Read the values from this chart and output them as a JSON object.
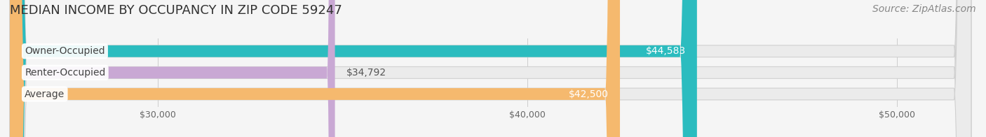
{
  "title": "MEDIAN INCOME BY OCCUPANCY IN ZIP CODE 59247",
  "source": "Source: ZipAtlas.com",
  "categories": [
    "Owner-Occupied",
    "Renter-Occupied",
    "Average"
  ],
  "values": [
    44583,
    34792,
    42500
  ],
  "bar_colors": [
    "#2bbcbf",
    "#c9a8d4",
    "#f5b96e"
  ],
  "value_labels": [
    "$44,583",
    "$34,792",
    "$42,500"
  ],
  "x_min": 26000,
  "x_max": 52000,
  "x_ticks": [
    30000,
    40000,
    50000
  ],
  "x_tick_labels": [
    "$30,000",
    "$40,000",
    "$50,000"
  ],
  "background_color": "#f5f5f5",
  "bar_background_color": "#ebebeb",
  "bar_height": 0.55,
  "title_fontsize": 13,
  "source_fontsize": 10,
  "label_fontsize": 10,
  "tick_fontsize": 9
}
